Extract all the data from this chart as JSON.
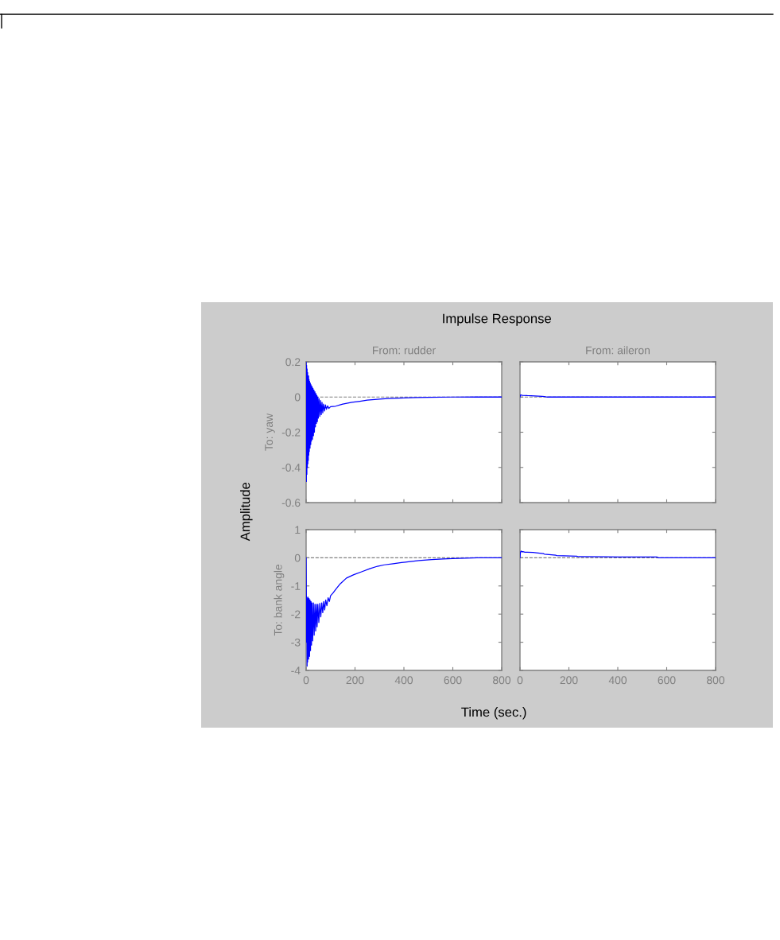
{
  "chart_data": [
    {
      "type": "other",
      "title": "Impulse Response",
      "xlabel": "Time (sec.)",
      "ylabel": "Amplitude"
    },
    {
      "type": "line",
      "title": "From: rudder",
      "ylabel": "To: yaw",
      "x": [
        0,
        1,
        2,
        3,
        4,
        5,
        6,
        7,
        8,
        9,
        10,
        11,
        12,
        13,
        14,
        16,
        17,
        19,
        20,
        22,
        24,
        26,
        28,
        30,
        32,
        34,
        36,
        38,
        40,
        42,
        44,
        46,
        48,
        50,
        53,
        56,
        59,
        62,
        65,
        68,
        71,
        75,
        79,
        83,
        88,
        93,
        100,
        120,
        150,
        187,
        220,
        250,
        300,
        335,
        400,
        450,
        500,
        600,
        700,
        800
      ],
      "series": [
        {
          "color": "#0000ff",
          "values": [
            0.2,
            -0.48,
            0.18,
            -0.44,
            0.16,
            -0.4,
            0.14,
            -0.38,
            0.12,
            -0.36,
            0.12,
            -0.33,
            0.1,
            -0.31,
            0.09,
            -0.29,
            0.08,
            -0.27,
            0.07,
            -0.25,
            0.06,
            -0.24,
            0.05,
            -0.22,
            0.04,
            -0.2,
            0.03,
            -0.17,
            0.02,
            -0.15,
            0.01,
            -0.14,
            0.0,
            -0.12,
            -0.01,
            -0.11,
            -0.02,
            -0.1,
            -0.03,
            -0.09,
            -0.04,
            -0.08,
            -0.045,
            -0.07,
            -0.05,
            -0.065,
            -0.055,
            -0.052,
            -0.04,
            -0.03,
            -0.024,
            -0.018,
            -0.012,
            -0.009,
            -0.005,
            -0.003,
            -0.002,
            0.0,
            0.0,
            0.0
          ]
        }
      ],
      "xlim": [
        0,
        800
      ],
      "xticks": [
        0,
        200,
        400,
        600,
        800
      ],
      "ylim": [
        -0.6,
        0.2
      ],
      "yticks": [
        -0.6,
        -0.4,
        -0.2,
        0,
        0.2
      ],
      "tick_labels": "y",
      "ref_lines": [
        {
          "axis": "y",
          "value": 0,
          "color": "#808080",
          "line_style": "dashed"
        }
      ]
    },
    {
      "type": "line",
      "title": "From: aileron",
      "x": [
        0,
        2,
        10,
        30,
        60,
        90,
        100,
        110,
        800
      ],
      "series": [
        {
          "color": "#0000ff",
          "values": [
            0.0,
            0.012,
            0.01,
            0.008,
            0.006,
            0.004,
            0.003,
            0.0,
            0.0
          ]
        }
      ],
      "xlim": [
        0,
        800
      ],
      "xticks": [
        0,
        200,
        400,
        600,
        800
      ],
      "ylim": [
        -0.6,
        0.2
      ],
      "yticks": [
        -0.6,
        -0.4,
        -0.2,
        0,
        0.2
      ],
      "tick_labels": false,
      "ref_lines": [
        {
          "axis": "y",
          "value": 0,
          "color": "#808080",
          "line_style": "dashed"
        }
      ]
    },
    {
      "type": "line",
      "ylabel": "To: bank angle",
      "x": [
        0,
        1,
        2,
        3,
        4,
        5,
        6,
        8,
        10,
        12,
        14,
        16,
        18,
        20,
        22,
        24,
        27,
        30,
        33,
        36,
        39,
        42,
        45,
        48,
        52,
        56,
        60,
        64,
        68,
        72,
        76,
        80,
        85,
        90,
        95,
        100,
        110,
        123,
        140,
        165,
        195,
        229,
        260,
        292,
        320,
        356,
        390,
        419,
        461,
        514,
        560,
        599,
        650,
        700,
        800
      ],
      "series": [
        {
          "color": "#0000ff",
          "values": [
            0.0,
            -1.4,
            -3.0,
            -1.4,
            -3.85,
            -1.45,
            -3.7,
            -1.4,
            -3.6,
            -1.45,
            -3.5,
            -1.5,
            -3.3,
            -1.55,
            -3.1,
            -1.6,
            -2.95,
            -1.6,
            -2.75,
            -1.65,
            -2.6,
            -1.65,
            -2.45,
            -1.65,
            -2.3,
            -1.62,
            -2.1,
            -1.6,
            -1.95,
            -1.55,
            -1.85,
            -1.5,
            -1.7,
            -1.42,
            -1.55,
            -1.35,
            -1.25,
            -1.1,
            -0.92,
            -0.72,
            -0.6,
            -0.49,
            -0.39,
            -0.3,
            -0.25,
            -0.21,
            -0.17,
            -0.14,
            -0.1,
            -0.06,
            -0.04,
            -0.03,
            -0.01,
            0.0,
            0.0
          ]
        }
      ],
      "xlim": [
        0,
        800
      ],
      "xticks": [
        0,
        200,
        400,
        600,
        800
      ],
      "ylim": [
        -4,
        1
      ],
      "yticks": [
        -4,
        -3,
        -2,
        -1,
        0,
        1
      ],
      "ref_lines": [
        {
          "axis": "y",
          "value": 0,
          "color": "#808080",
          "line_style": "dashed"
        }
      ]
    },
    {
      "type": "line",
      "x": [
        0,
        2,
        5,
        8,
        12,
        20,
        30,
        53,
        95,
        100,
        147,
        150,
        232,
        240,
        400,
        560,
        565,
        800
      ],
      "series": [
        {
          "color": "#0000ff",
          "values": [
            0.0,
            0.2,
            0.24,
            0.21,
            0.22,
            0.2,
            0.2,
            0.19,
            0.15,
            0.13,
            0.09,
            0.08,
            0.06,
            0.04,
            0.03,
            0.03,
            0.0,
            0.0
          ]
        }
      ],
      "xlim": [
        0,
        800
      ],
      "xticks": [
        0,
        200,
        400,
        600,
        800
      ],
      "ylim": [
        -4,
        1
      ],
      "yticks": [
        -4,
        -3,
        -2,
        -1,
        0,
        1
      ],
      "tick_labels": "x",
      "ref_lines": [
        {
          "axis": "y",
          "value": 0,
          "color": "#808080",
          "line_style": "dashed"
        }
      ]
    }
  ]
}
